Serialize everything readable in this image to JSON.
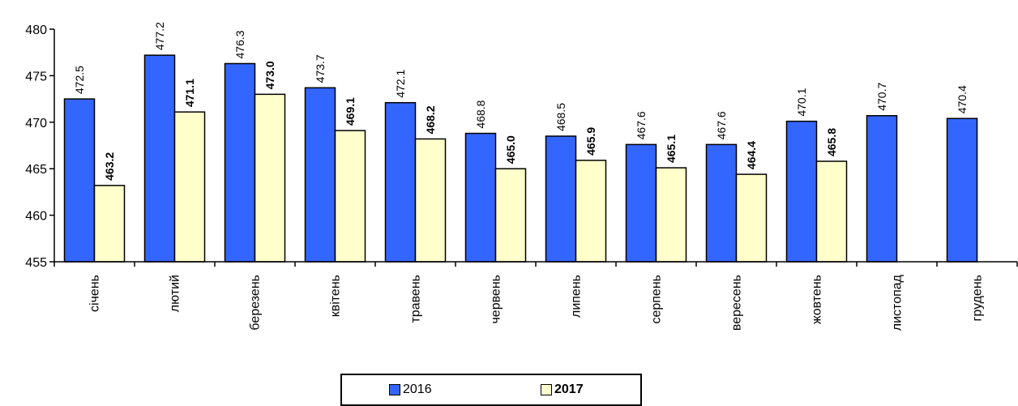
{
  "chart_data": {
    "type": "bar",
    "title": "",
    "xlabel": "",
    "ylabel": "",
    "ylim": [
      455,
      480
    ],
    "yticks": [
      455,
      460,
      465,
      470,
      475,
      480
    ],
    "grid": false,
    "legend_placement": "bottom-center",
    "categories": [
      "січень",
      "лютий",
      "березень",
      "квітень",
      "травень",
      "червень",
      "липень",
      "серпень",
      "вересень",
      "жовтень",
      "листопад",
      "грудень"
    ],
    "series": [
      {
        "name": "2016",
        "color": "#3366ff",
        "bold_labels": false,
        "values": [
          472.5,
          477.2,
          476.3,
          473.7,
          472.1,
          468.8,
          468.5,
          467.6,
          467.6,
          470.1,
          470.7,
          470.4
        ],
        "labels": [
          "472.5",
          "477.2",
          "476.3",
          "473.7",
          "472.1",
          "468.8",
          "468.5",
          "467.6",
          "467.6",
          "470.1",
          "470.7",
          "470.4"
        ]
      },
      {
        "name": "2017",
        "color": "#ffffcc",
        "bold_labels": true,
        "values": [
          463.2,
          471.1,
          473.0,
          469.1,
          468.2,
          465.0,
          465.9,
          465.1,
          464.4,
          465.8,
          null,
          null
        ],
        "labels": [
          "463.2",
          "471.1",
          "473.0",
          "469.1",
          "468.2",
          "465.0",
          "465.9",
          "465.1",
          "464.4",
          "465.8",
          null,
          null
        ]
      }
    ]
  }
}
